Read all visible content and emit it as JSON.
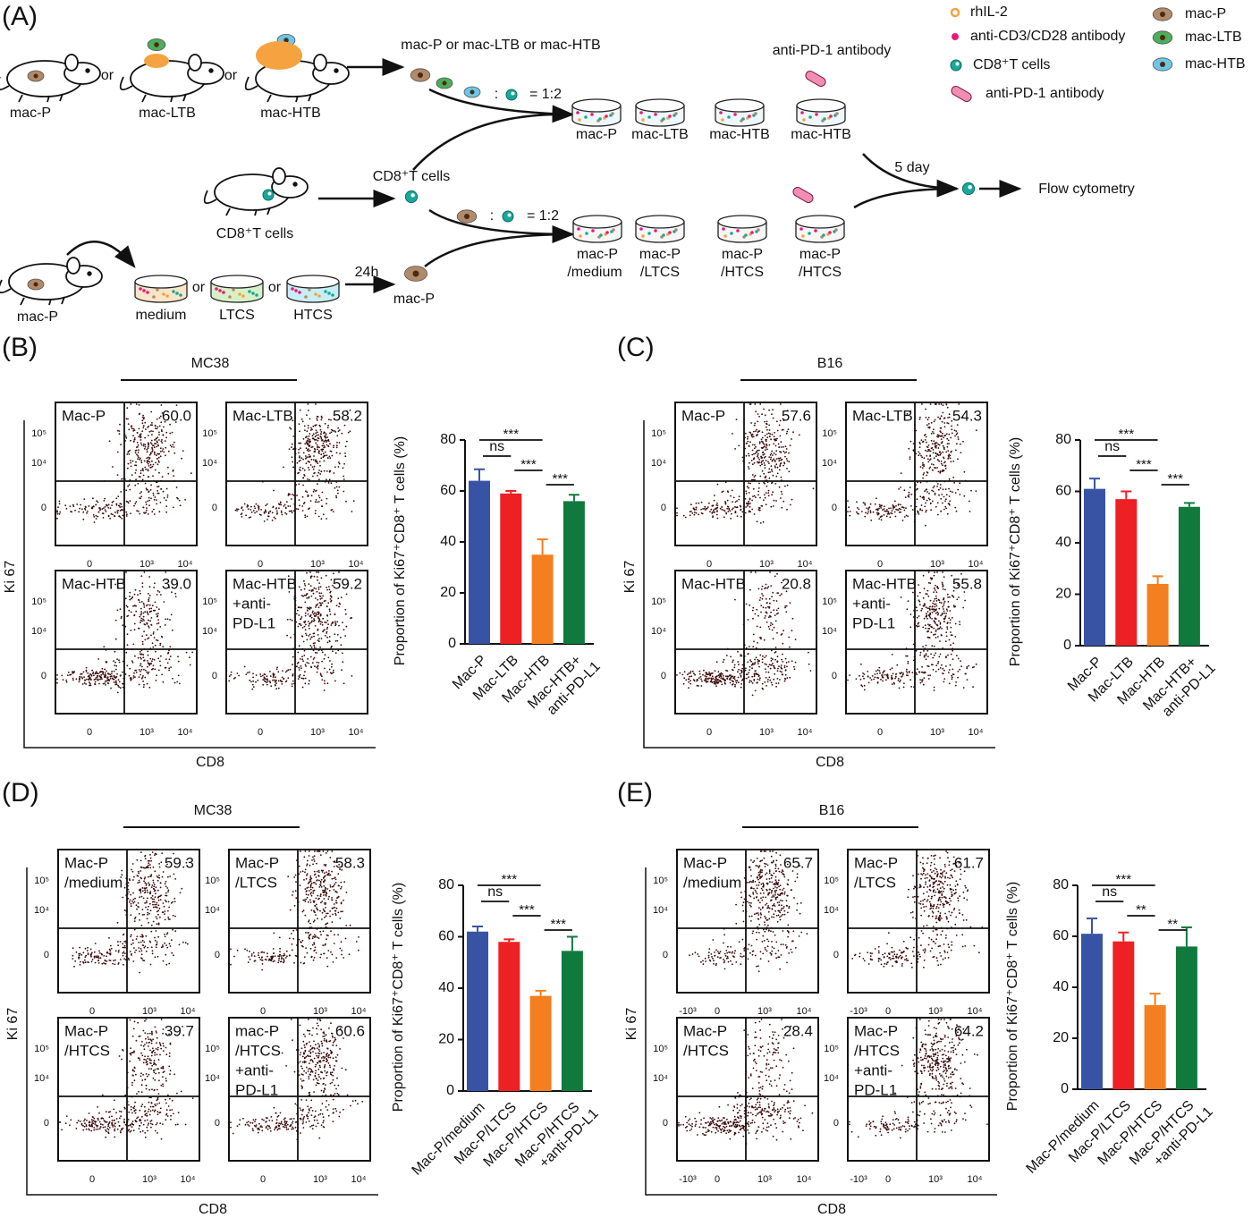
{
  "panel_labels": [
    "(A)",
    "(B)",
    "(C)",
    "(D)",
    "(E)"
  ],
  "schematic": {
    "texts": [
      "mac-P",
      "or",
      "mac-LTB",
      "or",
      "mac-HTB",
      "mac-P or mac-LTB or mac-HTB",
      ":",
      "= 1:2",
      "mac-P",
      "mac-LTB",
      "mac-HTB",
      "mac-HTB",
      "anti-PD-1 antibody",
      "CD8⁺T cells",
      "CD8⁺T cells",
      ":",
      "= 1:2",
      "mac-P",
      "/medium",
      "mac-P",
      "/LTCS",
      "mac-P",
      "/HTCS",
      "mac-P",
      "/HTCS",
      "5 day",
      "Flow cytometry",
      "mac-P",
      "medium",
      "or",
      "LTCS",
      "or",
      "HTCS",
      "24h",
      "mac-P"
    ],
    "legend": [
      "rhIL-2",
      "anti-CD3/CD28 antibody",
      "CD8⁺T cells",
      "anti-PD-1 antibody",
      "mac-P",
      "mac-LTB",
      "mac-HTB"
    ]
  },
  "flow_panels": [
    {
      "group": "MC38",
      "x_label": "CD8",
      "y_label": "Ki 67",
      "yticks": [
        "10⁵",
        "10⁴",
        "0"
      ],
      "xticks": [
        "0",
        "10³",
        "10⁴"
      ],
      "plots": [
        {
          "lines": [
            "Mac-P"
          ],
          "value": "60.0"
        },
        {
          "lines": [
            "Mac-LTB"
          ],
          "value": "58.2"
        },
        {
          "lines": [
            "Mac-HTB"
          ],
          "value": "39.0"
        },
        {
          "lines": [
            "Mac-HTB",
            "+anti-",
            "PD-L1"
          ],
          "value": "59.2"
        }
      ]
    },
    {
      "group": "B16",
      "x_label": "CD8",
      "y_label": "Ki 67",
      "yticks": [
        "10⁵",
        "10⁴",
        "0"
      ],
      "xticks": [
        "0",
        "10³",
        "10⁴"
      ],
      "plots": [
        {
          "lines": [
            "Mac-P"
          ],
          "value": "57.6"
        },
        {
          "lines": [
            "Mac-LTB"
          ],
          "value": "54.3"
        },
        {
          "lines": [
            "Mac-HTB"
          ],
          "value": "20.8"
        },
        {
          "lines": [
            "Mac-HTB",
            "+anti-",
            "PD-L1"
          ],
          "value": "55.8"
        }
      ]
    },
    {
      "group": "MC38",
      "x_label": "CD8",
      "y_label": "Ki 67",
      "yticks": [
        "10⁵",
        "10⁴",
        "0"
      ],
      "xticks": [
        "0",
        "10³",
        "10⁴"
      ],
      "plots": [
        {
          "lines": [
            "Mac-P",
            "/medium"
          ],
          "value": "59.3"
        },
        {
          "lines": [
            "Mac-P",
            "/LTCS"
          ],
          "value": "58.3"
        },
        {
          "lines": [
            "Mac-P",
            "/HTCS"
          ],
          "value": "39.7"
        },
        {
          "lines": [
            "mac-P",
            "/HTCS",
            "+anti-",
            "PD-L1"
          ],
          "value": "60.6"
        }
      ]
    },
    {
      "group": "B16",
      "x_label": "CD8",
      "y_label": "Ki 67",
      "yticks": [
        "10⁵",
        "10⁴",
        "0"
      ],
      "xticks": [
        "-10³",
        "0",
        "10³",
        "10⁴"
      ],
      "plots": [
        {
          "lines": [
            "Mac-P",
            "/medium"
          ],
          "value": "65.7"
        },
        {
          "lines": [
            "Mac-P",
            "/LTCS"
          ],
          "value": "61.7"
        },
        {
          "lines": [
            "Mac-P",
            "/HTCS"
          ],
          "value": "28.4"
        },
        {
          "lines": [
            "Mac-P",
            "/HTCS",
            "+anti-",
            "PD-L1"
          ],
          "value": "64.2"
        }
      ]
    }
  ],
  "chart_data": [
    {
      "type": "bar",
      "ylabel": "Proportion of Ki67⁺CD8⁺ T cells (%)",
      "categories": [
        [
          "Mac-P"
        ],
        [
          "Mac-LTB"
        ],
        [
          "Mac-HTB"
        ],
        [
          "Mac-HTB+",
          "anti-PD-L1"
        ]
      ],
      "values": [
        64,
        59,
        35,
        56
      ],
      "errors": [
        4.5,
        1,
        6,
        2.5
      ],
      "colors": [
        "#3953a4",
        "#ed2024",
        "#f47f20",
        "#0f7a3c"
      ],
      "ylim": [
        0,
        80
      ],
      "yticks": [
        0,
        20,
        40,
        60,
        80
      ],
      "significance": [
        "***",
        "ns",
        "***",
        "***"
      ]
    },
    {
      "type": "bar",
      "ylabel": "Proportion of Ki67⁺CD8⁺ T cells (%)",
      "categories": [
        [
          "Mac-P"
        ],
        [
          "Mac-LTB"
        ],
        [
          "Mac-HTB"
        ],
        [
          "Mac-HTB+",
          "anti-PD-L1"
        ]
      ],
      "values": [
        61,
        57,
        24,
        54
      ],
      "errors": [
        4,
        3,
        3,
        1.5
      ],
      "colors": [
        "#3953a4",
        "#ed2024",
        "#f47f20",
        "#0f7a3c"
      ],
      "ylim": [
        0,
        80
      ],
      "yticks": [
        0,
        20,
        40,
        60,
        80
      ],
      "significance": [
        "***",
        "ns",
        "***",
        "***"
      ]
    },
    {
      "type": "bar",
      "ylabel": "Proportion of Ki67⁺CD8⁺ T cells (%)",
      "categories": [
        [
          "Mac-P/medium"
        ],
        [
          "Mac-P/LTCS"
        ],
        [
          "Mac-P/HTCS"
        ],
        [
          "Mac-P/HTCS",
          "+anti-PD-L1"
        ]
      ],
      "values": [
        62,
        58,
        37,
        54.5
      ],
      "errors": [
        2,
        1,
        2,
        5.5
      ],
      "colors": [
        "#3953a4",
        "#ed2024",
        "#f47f20",
        "#0f7a3c"
      ],
      "ylim": [
        0,
        80
      ],
      "yticks": [
        0,
        20,
        40,
        60,
        80
      ],
      "significance": [
        "***",
        "ns",
        "***",
        "***"
      ]
    },
    {
      "type": "bar",
      "ylabel": "Proportion of Ki67⁺CD8⁺ T cells (%)",
      "categories": [
        [
          "Mac-P/medium"
        ],
        [
          "Mac-P/LTCS"
        ],
        [
          "Mac-P/HTCS"
        ],
        [
          "Mac-P/HTCS",
          "+anti-PD-L1"
        ]
      ],
      "values": [
        61,
        58,
        33,
        56
      ],
      "errors": [
        6,
        3.5,
        4.5,
        7.5
      ],
      "colors": [
        "#3953a4",
        "#ed2024",
        "#f47f20",
        "#0f7a3c"
      ],
      "ylim": [
        0,
        80
      ],
      "yticks": [
        0,
        20,
        40,
        60,
        80
      ],
      "significance": [
        "***",
        "ns",
        "**",
        "**"
      ]
    }
  ]
}
